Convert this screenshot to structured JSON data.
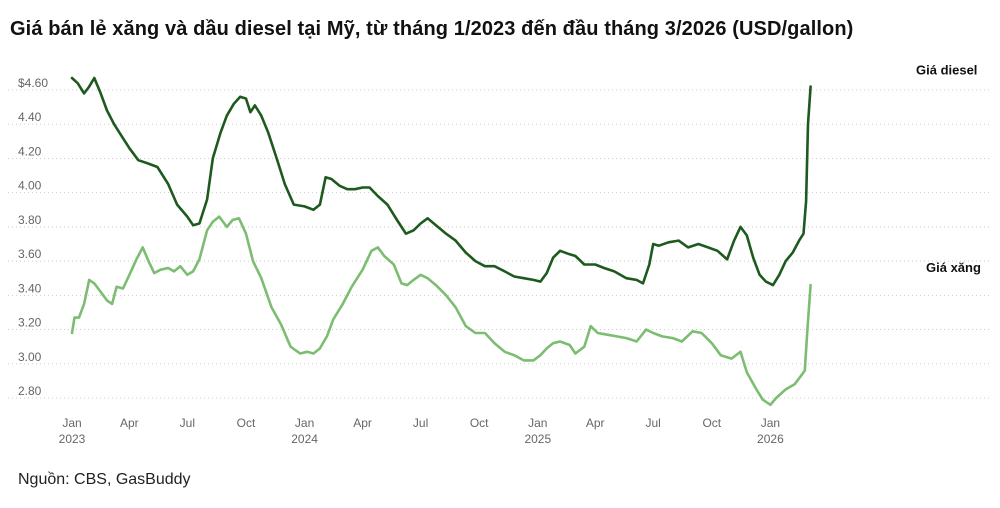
{
  "title": "Giá bán lẻ xăng và dầu diesel tại Mỹ, từ tháng 1/2023 đến đầu tháng 3/2026 (USD/gallon)",
  "source": "Nguồn: CBS, GasBuddy",
  "colors": {
    "diesel": "#1e5a1e",
    "gasoline": "#7cbd72",
    "grid": "#cccccc"
  },
  "chart_data": {
    "type": "line",
    "ylim": [
      2.7,
      4.72
    ],
    "y_ticks": [
      {
        "value": 4.6,
        "label": "$4.60"
      },
      {
        "value": 4.4,
        "label": "4.40"
      },
      {
        "value": 4.2,
        "label": "4.20"
      },
      {
        "value": 4.0,
        "label": "4.00"
      },
      {
        "value": 3.8,
        "label": "3.80"
      },
      {
        "value": 3.6,
        "label": "3.60"
      },
      {
        "value": 3.4,
        "label": "3.40"
      },
      {
        "value": 3.2,
        "label": "3.20"
      },
      {
        "value": 3.0,
        "label": "3.00"
      },
      {
        "value": 2.8,
        "label": "2.80"
      }
    ],
    "x_ticks": [
      {
        "date": "2023-01",
        "label": "Jan",
        "year": "2023"
      },
      {
        "date": "2023-04",
        "label": "Apr",
        "year": ""
      },
      {
        "date": "2023-07",
        "label": "Jul",
        "year": ""
      },
      {
        "date": "2023-10",
        "label": "Oct",
        "year": ""
      },
      {
        "date": "2024-01",
        "label": "Jan",
        "year": "2024"
      },
      {
        "date": "2024-04",
        "label": "Apr",
        "year": ""
      },
      {
        "date": "2024-07",
        "label": "Jul",
        "year": ""
      },
      {
        "date": "2024-10",
        "label": "Oct",
        "year": ""
      },
      {
        "date": "2025-01",
        "label": "Jan",
        "year": "2025"
      },
      {
        "date": "2025-04",
        "label": "Apr",
        "year": ""
      },
      {
        "date": "2025-07",
        "label": "Jul",
        "year": ""
      },
      {
        "date": "2025-10",
        "label": "Oct",
        "year": ""
      },
      {
        "date": "2026-01",
        "label": "Jan",
        "year": "2026"
      }
    ],
    "series": [
      {
        "name": "Giá diesel",
        "key": "diesel",
        "points": [
          [
            "2023-01-01",
            4.67
          ],
          [
            "2023-01-10",
            4.64
          ],
          [
            "2023-01-20",
            4.58
          ],
          [
            "2023-01-28",
            4.62
          ],
          [
            "2023-02-05",
            4.67
          ],
          [
            "2023-02-15",
            4.58
          ],
          [
            "2023-02-25",
            4.48
          ],
          [
            "2023-03-08",
            4.4
          ],
          [
            "2023-03-20",
            4.33
          ],
          [
            "2023-04-01",
            4.26
          ],
          [
            "2023-04-15",
            4.19
          ],
          [
            "2023-05-01",
            4.17
          ],
          [
            "2023-05-15",
            4.15
          ],
          [
            "2023-06-01",
            4.05
          ],
          [
            "2023-06-15",
            3.93
          ],
          [
            "2023-07-01",
            3.86
          ],
          [
            "2023-07-10",
            3.81
          ],
          [
            "2023-07-20",
            3.82
          ],
          [
            "2023-08-01",
            3.96
          ],
          [
            "2023-08-10",
            4.2
          ],
          [
            "2023-08-22",
            4.35
          ],
          [
            "2023-09-01",
            4.45
          ],
          [
            "2023-09-12",
            4.52
          ],
          [
            "2023-09-22",
            4.56
          ],
          [
            "2023-10-01",
            4.55
          ],
          [
            "2023-10-08",
            4.47
          ],
          [
            "2023-10-15",
            4.51
          ],
          [
            "2023-10-25",
            4.45
          ],
          [
            "2023-11-05",
            4.35
          ],
          [
            "2023-11-20",
            4.18
          ],
          [
            "2023-12-01",
            4.05
          ],
          [
            "2023-12-15",
            3.93
          ],
          [
            "2024-01-01",
            3.92
          ],
          [
            "2024-01-15",
            3.9
          ],
          [
            "2024-01-25",
            3.93
          ],
          [
            "2024-02-03",
            4.09
          ],
          [
            "2024-02-12",
            4.08
          ],
          [
            "2024-02-25",
            4.04
          ],
          [
            "2024-03-08",
            4.02
          ],
          [
            "2024-03-20",
            4.02
          ],
          [
            "2024-04-01",
            4.03
          ],
          [
            "2024-04-12",
            4.03
          ],
          [
            "2024-04-25",
            3.98
          ],
          [
            "2024-05-10",
            3.93
          ],
          [
            "2024-05-25",
            3.84
          ],
          [
            "2024-06-08",
            3.76
          ],
          [
            "2024-06-20",
            3.78
          ],
          [
            "2024-07-01",
            3.82
          ],
          [
            "2024-07-12",
            3.85
          ],
          [
            "2024-07-25",
            3.81
          ],
          [
            "2024-08-10",
            3.76
          ],
          [
            "2024-08-25",
            3.72
          ],
          [
            "2024-09-10",
            3.65
          ],
          [
            "2024-09-25",
            3.6
          ],
          [
            "2024-10-10",
            3.57
          ],
          [
            "2024-10-25",
            3.57
          ],
          [
            "2024-11-10",
            3.54
          ],
          [
            "2024-11-25",
            3.51
          ],
          [
            "2024-12-10",
            3.5
          ],
          [
            "2024-12-25",
            3.49
          ],
          [
            "2025-01-05",
            3.48
          ],
          [
            "2025-01-15",
            3.53
          ],
          [
            "2025-01-25",
            3.62
          ],
          [
            "2025-02-05",
            3.66
          ],
          [
            "2025-02-20",
            3.64
          ],
          [
            "2025-03-01",
            3.63
          ],
          [
            "2025-03-15",
            3.58
          ],
          [
            "2025-04-01",
            3.58
          ],
          [
            "2025-04-15",
            3.56
          ],
          [
            "2025-05-01",
            3.54
          ],
          [
            "2025-05-20",
            3.5
          ],
          [
            "2025-06-05",
            3.49
          ],
          [
            "2025-06-15",
            3.47
          ],
          [
            "2025-06-25",
            3.58
          ],
          [
            "2025-07-01",
            3.7
          ],
          [
            "2025-07-10",
            3.69
          ],
          [
            "2025-07-25",
            3.71
          ],
          [
            "2025-08-10",
            3.72
          ],
          [
            "2025-08-25",
            3.68
          ],
          [
            "2025-09-10",
            3.7
          ],
          [
            "2025-09-25",
            3.68
          ],
          [
            "2025-10-10",
            3.66
          ],
          [
            "2025-10-25",
            3.61
          ],
          [
            "2025-11-05",
            3.72
          ],
          [
            "2025-11-15",
            3.8
          ],
          [
            "2025-11-25",
            3.75
          ],
          [
            "2025-12-05",
            3.62
          ],
          [
            "2025-12-15",
            3.52
          ],
          [
            "2025-12-25",
            3.48
          ],
          [
            "2026-01-05",
            3.46
          ],
          [
            "2026-01-15",
            3.52
          ],
          [
            "2026-01-25",
            3.6
          ],
          [
            "2026-02-05",
            3.65
          ],
          [
            "2026-02-15",
            3.72
          ],
          [
            "2026-02-22",
            3.76
          ],
          [
            "2026-02-26",
            3.95
          ],
          [
            "2026-03-01",
            4.4
          ],
          [
            "2026-03-05",
            4.62
          ]
        ]
      },
      {
        "name": "Giá xăng",
        "key": "gasoline",
        "points": [
          [
            "2023-01-01",
            3.18
          ],
          [
            "2023-01-05",
            3.27
          ],
          [
            "2023-01-12",
            3.27
          ],
          [
            "2023-01-20",
            3.35
          ],
          [
            "2023-01-28",
            3.49
          ],
          [
            "2023-02-05",
            3.47
          ],
          [
            "2023-02-15",
            3.42
          ],
          [
            "2023-02-25",
            3.37
          ],
          [
            "2023-03-05",
            3.35
          ],
          [
            "2023-03-12",
            3.45
          ],
          [
            "2023-03-22",
            3.44
          ],
          [
            "2023-04-01",
            3.52
          ],
          [
            "2023-04-12",
            3.61
          ],
          [
            "2023-04-22",
            3.68
          ],
          [
            "2023-05-01",
            3.6
          ],
          [
            "2023-05-10",
            3.53
          ],
          [
            "2023-05-20",
            3.55
          ],
          [
            "2023-06-01",
            3.56
          ],
          [
            "2023-06-10",
            3.54
          ],
          [
            "2023-06-20",
            3.57
          ],
          [
            "2023-07-01",
            3.52
          ],
          [
            "2023-07-10",
            3.54
          ],
          [
            "2023-07-20",
            3.61
          ],
          [
            "2023-08-01",
            3.78
          ],
          [
            "2023-08-10",
            3.83
          ],
          [
            "2023-08-20",
            3.86
          ],
          [
            "2023-09-01",
            3.8
          ],
          [
            "2023-09-10",
            3.84
          ],
          [
            "2023-09-20",
            3.85
          ],
          [
            "2023-10-01",
            3.76
          ],
          [
            "2023-10-12",
            3.6
          ],
          [
            "2023-10-25",
            3.5
          ],
          [
            "2023-11-10",
            3.33
          ],
          [
            "2023-11-25",
            3.23
          ],
          [
            "2023-12-10",
            3.1
          ],
          [
            "2023-12-25",
            3.06
          ],
          [
            "2024-01-05",
            3.07
          ],
          [
            "2024-01-15",
            3.06
          ],
          [
            "2024-01-25",
            3.09
          ],
          [
            "2024-02-05",
            3.16
          ],
          [
            "2024-02-15",
            3.26
          ],
          [
            "2024-03-01",
            3.35
          ],
          [
            "2024-03-15",
            3.45
          ],
          [
            "2024-04-01",
            3.55
          ],
          [
            "2024-04-15",
            3.66
          ],
          [
            "2024-04-25",
            3.68
          ],
          [
            "2024-05-05",
            3.63
          ],
          [
            "2024-05-20",
            3.58
          ],
          [
            "2024-06-01",
            3.47
          ],
          [
            "2024-06-10",
            3.46
          ],
          [
            "2024-06-20",
            3.49
          ],
          [
            "2024-07-01",
            3.52
          ],
          [
            "2024-07-12",
            3.5
          ],
          [
            "2024-07-25",
            3.46
          ],
          [
            "2024-08-10",
            3.4
          ],
          [
            "2024-08-25",
            3.33
          ],
          [
            "2024-09-10",
            3.22
          ],
          [
            "2024-09-25",
            3.18
          ],
          [
            "2024-10-10",
            3.18
          ],
          [
            "2024-10-25",
            3.12
          ],
          [
            "2024-11-10",
            3.07
          ],
          [
            "2024-11-25",
            3.05
          ],
          [
            "2024-12-10",
            3.02
          ],
          [
            "2024-12-25",
            3.02
          ],
          [
            "2025-01-05",
            3.05
          ],
          [
            "2025-01-15",
            3.09
          ],
          [
            "2025-01-25",
            3.12
          ],
          [
            "2025-02-05",
            3.13
          ],
          [
            "2025-02-20",
            3.11
          ],
          [
            "2025-03-01",
            3.06
          ],
          [
            "2025-03-15",
            3.1
          ],
          [
            "2025-03-25",
            3.22
          ],
          [
            "2025-04-05",
            3.18
          ],
          [
            "2025-04-20",
            3.17
          ],
          [
            "2025-05-05",
            3.16
          ],
          [
            "2025-05-20",
            3.15
          ],
          [
            "2025-06-05",
            3.13
          ],
          [
            "2025-06-20",
            3.2
          ],
          [
            "2025-07-01",
            3.18
          ],
          [
            "2025-07-15",
            3.16
          ],
          [
            "2025-08-01",
            3.15
          ],
          [
            "2025-08-15",
            3.13
          ],
          [
            "2025-09-01",
            3.19
          ],
          [
            "2025-09-15",
            3.18
          ],
          [
            "2025-10-01",
            3.12
          ],
          [
            "2025-10-15",
            3.05
          ],
          [
            "2025-11-01",
            3.03
          ],
          [
            "2025-11-15",
            3.07
          ],
          [
            "2025-11-25",
            2.95
          ],
          [
            "2025-12-10",
            2.85
          ],
          [
            "2025-12-20",
            2.79
          ],
          [
            "2026-01-01",
            2.76
          ],
          [
            "2026-01-10",
            2.8
          ],
          [
            "2026-01-25",
            2.85
          ],
          [
            "2026-02-08",
            2.88
          ],
          [
            "2026-02-18",
            2.93
          ],
          [
            "2026-02-24",
            2.96
          ],
          [
            "2026-02-28",
            3.2
          ],
          [
            "2026-03-05",
            3.46
          ]
        ]
      }
    ]
  }
}
